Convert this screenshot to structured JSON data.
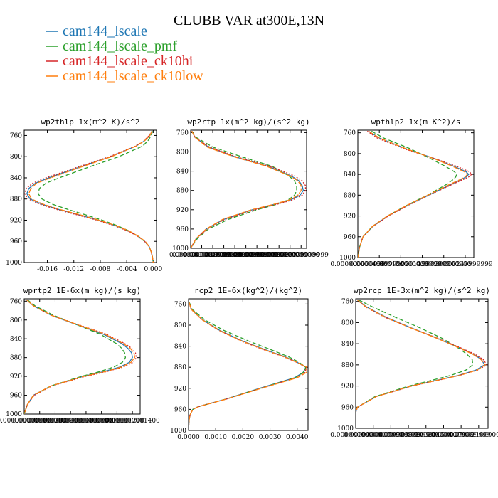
{
  "figure": {
    "title": "CLUBB VAR at300E,13N"
  },
  "legend": [
    {
      "name": "cam144_lscale",
      "color": "#1f77b4"
    },
    {
      "name": "cam144_lscale_pmf",
      "color": "#2ca02c"
    },
    {
      "name": "cam144_lscale_ck10hi",
      "color": "#d62728"
    },
    {
      "name": "cam144_lscale_ck10low",
      "color": "#ff7f0e"
    }
  ],
  "chart_data": [
    {
      "type": "line",
      "title": "wp2thlp  1x(m^2 K)/s^2",
      "xlim": [
        -0.0195,
        0.0005
      ],
      "ylim": [
        750,
        1000
      ],
      "yticks": [
        760,
        800,
        840,
        880,
        920,
        960,
        1000
      ],
      "xticks": [
        "-0.016",
        "-0.012",
        "-0.008",
        "-0.004",
        "0.000"
      ],
      "xtick_values": [
        -0.016,
        -0.012,
        -0.008,
        -0.004,
        0.0
      ],
      "y": [
        752,
        760,
        770,
        780,
        800,
        820,
        840,
        850,
        860,
        870,
        880,
        890,
        900,
        910,
        920,
        930,
        940,
        950,
        960,
        970,
        980,
        990,
        1000
      ],
      "series": [
        {
          "name": "cam144_lscale",
          "values": [
            -0.0002,
            -0.0005,
            -0.0013,
            -0.0026,
            -0.0064,
            -0.0112,
            -0.0158,
            -0.0178,
            -0.0188,
            -0.0191,
            -0.0186,
            -0.0168,
            -0.0142,
            -0.0112,
            -0.0083,
            -0.0058,
            -0.0038,
            -0.0023,
            -0.0013,
            -0.0006,
            -0.0003,
            -0.0001,
            0.0
          ]
        },
        {
          "name": "cam144_lscale_pmf",
          "values": [
            -0.0001,
            -0.0003,
            -0.0008,
            -0.0016,
            -0.0052,
            -0.0098,
            -0.0142,
            -0.0162,
            -0.0172,
            -0.0174,
            -0.0168,
            -0.0152,
            -0.0128,
            -0.0102,
            -0.0077,
            -0.0055,
            -0.0037,
            -0.0023,
            -0.0013,
            -0.0006,
            -0.0003,
            -0.0001,
            0.0
          ]
        },
        {
          "name": "cam144_lscale_ck10hi",
          "values": [
            -0.0002,
            -0.0006,
            -0.0014,
            -0.0027,
            -0.0066,
            -0.0115,
            -0.0162,
            -0.0182,
            -0.0192,
            -0.0194,
            -0.0189,
            -0.0171,
            -0.0145,
            -0.0115,
            -0.0085,
            -0.006,
            -0.0039,
            -0.0024,
            -0.0013,
            -0.0006,
            -0.0003,
            -0.0001,
            0.0
          ]
        },
        {
          "name": "cam144_lscale_ck10low",
          "values": [
            -0.0002,
            -0.0005,
            -0.0013,
            -0.0026,
            -0.0063,
            -0.011,
            -0.0155,
            -0.0176,
            -0.0185,
            -0.0188,
            -0.0184,
            -0.0166,
            -0.014,
            -0.011,
            -0.0082,
            -0.0057,
            -0.0037,
            -0.0023,
            -0.0012,
            -0.0006,
            -0.0003,
            -0.0001,
            0.0
          ]
        }
      ]
    },
    {
      "type": "line",
      "title": "wp2rtp  1x(m^2 kg)/(s^2 kg)",
      "xlim": [
        0,
        1.05e-05
      ],
      "ylim": [
        755,
        1000
      ],
      "yticks": [
        760,
        800,
        840,
        880,
        920,
        960,
        1000
      ],
      "xticks": [
        "0.000000000",
        "0.0000010000000",
        "0.0000019999999",
        "0.0000030000000",
        "0.0000040000000",
        "0.0000049999999",
        "0.0000060000000",
        "0.0000069999999",
        "0.0000080000000",
        "0.0000090000000",
        "0.000009999999"
      ],
      "xtick_values": [
        0,
        1e-06,
        2e-06,
        3e-06,
        4e-06,
        5e-06,
        6e-06,
        7e-06,
        8e-06,
        9e-06,
        1e-05
      ],
      "y": [
        757,
        770,
        790,
        810,
        830,
        850,
        860,
        870,
        880,
        890,
        900,
        910,
        920,
        940,
        960,
        980,
        1000
      ],
      "series": [
        {
          "name": "cam144_lscale",
          "values": [
            1e-07,
            4e-07,
            1.6e-06,
            4e-06,
            7e-06,
            9.1e-06,
            9.8e-06,
            1.01e-05,
            1.02e-05,
            9.9e-06,
            9e-06,
            7.4e-06,
            5.6e-06,
            3e-06,
            1.4e-06,
            5e-07,
            0.0
          ]
        },
        {
          "name": "cam144_lscale_pmf",
          "values": [
            1e-07,
            5e-07,
            2e-06,
            4.6e-06,
            7.4e-06,
            8.9e-06,
            9.4e-06,
            9.6e-06,
            9.6e-06,
            9.4e-06,
            8.8e-06,
            7.6e-06,
            6e-06,
            3.4e-06,
            1.6e-06,
            6e-07,
            0.0
          ]
        },
        {
          "name": "cam144_lscale_ck10hi",
          "values": [
            1e-07,
            4e-07,
            1.7e-06,
            4.1e-06,
            7.2e-06,
            9.4e-06,
            1.01e-05,
            1.04e-05,
            1.04e-05,
            1.01e-05,
            9.2e-06,
            7.6e-06,
            5.8e-06,
            3.1e-06,
            1.5e-06,
            5e-07,
            0.0
          ]
        },
        {
          "name": "cam144_lscale_ck10low",
          "values": [
            1e-07,
            4e-07,
            1.5e-06,
            3.9e-06,
            6.9e-06,
            9e-06,
            9.7e-06,
            1e-05,
            1e-05,
            9.7e-06,
            8.9e-06,
            7.3e-06,
            5.5e-06,
            2.9e-06,
            1.4e-06,
            5e-07,
            0.0
          ]
        }
      ]
    },
    {
      "type": "line",
      "title": "wpthlp2  1x(m K^2)/s",
      "xlim": [
        0,
        0.00027
      ],
      "ylim": [
        755,
        1000
      ],
      "yticks": [
        760,
        800,
        840,
        880,
        920,
        960,
        1000
      ],
      "xticks": [
        "0.000000000000",
        "0.0000499999999",
        "0.000100000000",
        "0.000149999999",
        "0.000200000000",
        "0.000249999999"
      ],
      "xtick_values": [
        0,
        5e-05,
        0.0001,
        0.00015,
        0.0002,
        0.00025
      ],
      "y": [
        757,
        770,
        790,
        810,
        825,
        835,
        840,
        845,
        850,
        860,
        880,
        900,
        920,
        940,
        960,
        980,
        1000
      ],
      "series": [
        {
          "name": "cam144_lscale",
          "values": [
            2.5e-05,
            5e-05,
            0.00011,
            0.00018,
            0.000225,
            0.000252,
            0.000258,
            0.000252,
            0.00024,
            0.000215,
            0.000165,
            0.000115,
            7e-05,
            3.5e-05,
            1.2e-05,
            4e-06,
            0.0
          ]
        },
        {
          "name": "cam144_lscale_pmf",
          "values": [
            3.2e-05,
            6e-05,
            0.00012,
            0.00017,
            0.000205,
            0.000225,
            0.00023,
            0.000228,
            0.000222,
            0.000205,
            0.000162,
            0.000113,
            6.9e-05,
            3.4e-05,
            1.2e-05,
            4e-06,
            0.0
          ]
        },
        {
          "name": "cam144_lscale_ck10hi",
          "values": [
            2.2e-05,
            4.5e-05,
            0.000105,
            0.00018,
            0.000232,
            0.00026,
            0.000265,
            0.000258,
            0.000245,
            0.000218,
            0.000166,
            0.000116,
            7.1e-05,
            3.5e-05,
            1.2e-05,
            4e-06,
            0.0
          ]
        },
        {
          "name": "cam144_lscale_ck10low",
          "values": [
            2.5e-05,
            5e-05,
            0.00011,
            0.000178,
            0.000222,
            0.000248,
            0.000255,
            0.00025,
            0.000238,
            0.000212,
            0.000163,
            0.000113,
            6.9e-05,
            3.4e-05,
            1.2e-05,
            4e-06,
            0.0
          ]
        }
      ]
    },
    {
      "type": "line",
      "title": "wprtp2  1E-6x(m kg)/(s kg)",
      "xlim": [
        0,
        1.5e-09
      ],
      "ylim": [
        755,
        1000
      ],
      "yticks": [
        760,
        800,
        840,
        880,
        920,
        960,
        1000
      ],
      "xticks": [
        "0.000000000000",
        "0.000000000200",
        "0.000000000400",
        "0.000000000600",
        "0.000000000800",
        "0.000000001000",
        "0.000000001200",
        "0.000000001400"
      ],
      "xtick_values": [
        0,
        2e-10,
        4e-10,
        6e-10,
        8e-10,
        1e-09,
        1.2e-09,
        1.4e-09
      ],
      "y": [
        757,
        770,
        790,
        810,
        830,
        850,
        860,
        870,
        880,
        890,
        900,
        910,
        920,
        940,
        960,
        980,
        1000
      ],
      "series": [
        {
          "name": "cam144_lscale",
          "values": [
            3e-11,
            1.2e-10,
            3.5e-10,
            6.8e-10,
            1.02e-09,
            1.26e-09,
            1.34e-09,
            1.39e-09,
            1.4e-09,
            1.36e-09,
            1.24e-09,
            1.02e-09,
            7.6e-10,
            3.5e-10,
            1.2e-10,
            4e-11,
            0.0
          ]
        },
        {
          "name": "cam144_lscale_pmf",
          "values": [
            4e-11,
            1.4e-10,
            3.8e-10,
            6.8e-10,
            9.8e-10,
            1.19e-09,
            1.26e-09,
            1.3e-09,
            1.31e-09,
            1.27e-09,
            1.16e-09,
            9.7e-10,
            7.4e-10,
            3.5e-10,
            1.2e-10,
            4e-11,
            0.0
          ]
        },
        {
          "name": "cam144_lscale_ck10hi",
          "values": [
            3e-11,
            1.2e-10,
            3.5e-10,
            7e-10,
            1.06e-09,
            1.3e-09,
            1.39e-09,
            1.44e-09,
            1.45e-09,
            1.41e-09,
            1.28e-09,
            1.06e-09,
            7.9e-10,
            3.6e-10,
            1.3e-10,
            4e-11,
            0.0
          ]
        },
        {
          "name": "cam144_lscale_ck10low",
          "values": [
            3e-11,
            1.2e-10,
            3.5e-10,
            6.9e-10,
            1.04e-09,
            1.28e-09,
            1.37e-09,
            1.42e-09,
            1.43e-09,
            1.38e-09,
            1.26e-09,
            1.04e-09,
            7.7e-10,
            3.5e-10,
            1.2e-10,
            4e-11,
            0.0
          ]
        }
      ]
    },
    {
      "type": "line",
      "title": "rcp2  1E-6x(kg^2)/(kg^2)",
      "xlim": [
        0,
        4.4e-13
      ],
      "ylim": [
        750,
        1000
      ],
      "yticks": [
        760,
        800,
        840,
        880,
        920,
        960,
        1000
      ],
      "xticks": [
        "0.0000",
        "0.0010",
        "0.0020",
        "0.0030",
        "0.0040"
      ],
      "xtick_values": [
        0,
        1e-13,
        2e-13,
        3e-13,
        4e-13
      ],
      "y": [
        757,
        770,
        790,
        810,
        830,
        850,
        860,
        870,
        880,
        890,
        900,
        920,
        940,
        955,
        960,
        970,
        980,
        1000
      ],
      "series": [
        {
          "name": "cam144_lscale",
          "values": [
            2e-15,
            1e-14,
            5.2e-14,
            1.15e-13,
            1.98e-13,
            3e-13,
            3.55e-13,
            3.98e-13,
            4.32e-13,
            4.22e-13,
            3.9e-13,
            2.62e-13,
            1.4e-13,
            3.5e-14,
            1.6e-14,
            6e-15,
            2e-15,
            0.0
          ]
        },
        {
          "name": "cam144_lscale_pmf",
          "values": [
            3e-15,
            1.3e-14,
            6e-14,
            1.3e-13,
            2.2e-13,
            3.2e-13,
            3.68e-13,
            4.05e-13,
            4.32e-13,
            4.22e-13,
            3.92e-13,
            2.64e-13,
            1.41e-13,
            3.5e-14,
            1.6e-14,
            6e-15,
            2e-15,
            0.0
          ]
        },
        {
          "name": "cam144_lscale_ck10hi",
          "values": [
            2e-15,
            1e-14,
            5e-14,
            1.12e-13,
            1.92e-13,
            2.94e-13,
            3.5e-13,
            3.95e-13,
            4.34e-13,
            4.28e-13,
            3.96e-13,
            2.66e-13,
            1.42e-13,
            3.5e-14,
            1.6e-14,
            6e-15,
            2e-15,
            0.0
          ]
        },
        {
          "name": "cam144_lscale_ck10low",
          "values": [
            2e-15,
            1e-14,
            5.1e-14,
            1.13e-13,
            1.95e-13,
            2.97e-13,
            3.52e-13,
            3.97e-13,
            4.36e-13,
            4.34e-13,
            4e-13,
            2.68e-13,
            1.42e-13,
            3.6e-14,
            1.6e-14,
            6e-15,
            2e-15,
            0.0
          ]
        }
      ]
    },
    {
      "type": "line",
      "title": "wp2rcp  1E-3x(m^2 kg)/(s^2 kg)",
      "xlim": [
        0,
        2.26e-05
      ],
      "ylim": [
        755,
        1000
      ],
      "yticks": [
        760,
        800,
        840,
        880,
        920,
        960,
        1000
      ],
      "xticks": [
        "0.00000000000",
        "0.0000030000000",
        "0.0000059999999",
        "0.0000089999999",
        "0.00001200000",
        "0.0000150000000",
        "0.0000179999999",
        "0.0000210000000"
      ],
      "xtick_values": [
        0,
        3e-06,
        6e-06,
        9e-06,
        1.2e-05,
        1.5e-05,
        1.8e-05,
        2.1e-05
      ],
      "y": [
        757,
        770,
        790,
        810,
        830,
        850,
        860,
        870,
        880,
        890,
        900,
        910,
        920,
        940,
        960,
        970,
        980,
        1000
      ],
      "series": [
        {
          "name": "cam144_lscale",
          "values": [
            3e-07,
            1.8e-06,
            5.2e-06,
            9.5e-06,
            1.4e-05,
            1.82e-05,
            2.01e-05,
            2.15e-05,
            2.2e-05,
            2.05e-05,
            1.75e-05,
            1.35e-05,
            9.5e-06,
            3.5e-06,
            3e-07,
            0.0,
            0.0,
            0.0
          ]
        },
        {
          "name": "cam144_lscale_pmf",
          "values": [
            5e-07,
            2.8e-06,
            6.8e-06,
            1.1e-05,
            1.48e-05,
            1.78e-05,
            1.9e-05,
            1.99e-05,
            2e-05,
            1.88e-05,
            1.62e-05,
            1.27e-05,
            9.1e-06,
            3.3e-06,
            3e-07,
            0.0,
            0.0,
            0.0
          ]
        },
        {
          "name": "cam144_lscale_ck10hi",
          "values": [
            3e-07,
            1.6e-06,
            5e-06,
            9.4e-06,
            1.41e-05,
            1.84e-05,
            2.04e-05,
            2.18e-05,
            2.24e-05,
            2.08e-05,
            1.77e-05,
            1.37e-05,
            9.6e-06,
            3.5e-06,
            3e-07,
            0.0,
            0.0,
            0.0
          ]
        },
        {
          "name": "cam144_lscale_ck10low",
          "values": [
            3e-07,
            1.7e-06,
            5.1e-06,
            9.4e-06,
            1.39e-05,
            1.81e-05,
            2e-05,
            2.14e-05,
            2.21e-05,
            2.07e-05,
            1.77e-05,
            1.36e-05,
            9.5e-06,
            3.5e-06,
            3e-07,
            0.0,
            0.0,
            0.0
          ]
        }
      ]
    }
  ]
}
